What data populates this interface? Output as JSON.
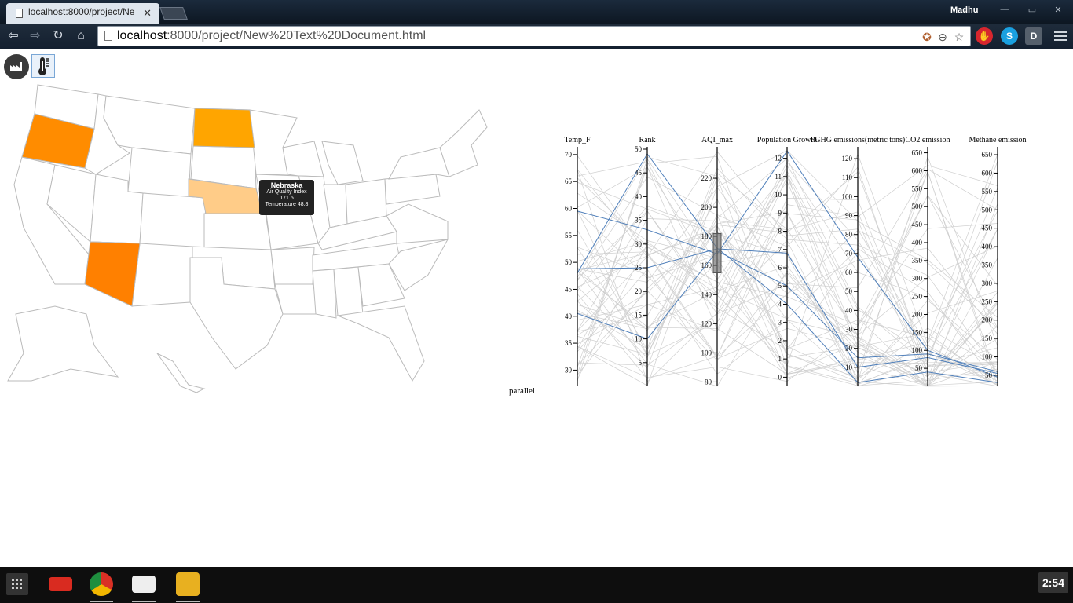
{
  "browser": {
    "tab_title": "localhost:8000/project/Ne",
    "url_host": "localhost",
    "url_rest": ":8000/project/New%20Text%20Document.html",
    "user": "Madhu",
    "clock": "2:54"
  },
  "map": {
    "highlighted_states": [
      {
        "name": "Oregon",
        "color": "#ff8c00"
      },
      {
        "name": "North Dakota",
        "color": "#ffa500"
      },
      {
        "name": "Nebraska",
        "color": "#ffcc88"
      },
      {
        "name": "Arizona",
        "color": "#ff8000"
      }
    ],
    "tooltip": {
      "state": "Nebraska",
      "aqi_label": "Air Quality Index",
      "aqi_value": "171.5",
      "temp_label": "Temperature",
      "temp_value": "48.8"
    }
  },
  "parallel": {
    "label": "parallel",
    "axes": [
      {
        "name": "Temp_F",
        "ticks": [
          "30",
          "35",
          "40",
          "45",
          "50",
          "55",
          "60",
          "65",
          "70"
        ],
        "min": 27,
        "max": 71
      },
      {
        "name": "Rank",
        "ticks": [
          "5",
          "10",
          "15",
          "20",
          "25",
          "30",
          "35",
          "40",
          "45",
          "50"
        ],
        "min": 0,
        "max": 50
      },
      {
        "name": "AQI_max",
        "ticks": [
          "80",
          "100",
          "120",
          "140",
          "160",
          "180",
          "200",
          "220"
        ],
        "min": 77,
        "max": 240
      },
      {
        "name": "Population Growth",
        "ticks": [
          "0",
          "1",
          "2",
          "3",
          "4",
          "5",
          "6",
          "7",
          "8",
          "9",
          "10",
          "11",
          "12"
        ],
        "min": -0.5,
        "max": 12.5
      },
      {
        "name": "FGHG emissions(metric tons)",
        "ticks": [
          "10",
          "20",
          "30",
          "40",
          "50",
          "60",
          "70",
          "80",
          "90",
          "100",
          "110",
          "120"
        ],
        "min": 0,
        "max": 125
      },
      {
        "name": "CO2 emission",
        "ticks": [
          "50",
          "100",
          "150",
          "200",
          "250",
          "300",
          "350",
          "400",
          "450",
          "500",
          "550",
          "600",
          "650"
        ],
        "min": 0,
        "max": 660
      },
      {
        "name": "Methane emission",
        "ticks": [
          "50",
          "100",
          "150",
          "200",
          "250",
          "300",
          "350",
          "400",
          "450",
          "500",
          "550",
          "600",
          "650"
        ],
        "min": 20,
        "max": 665
      }
    ],
    "brush": {
      "axis": "AQI_max",
      "min": 155,
      "max": 182
    },
    "highlighted_records": [
      [
        48.8,
        25,
        171.5,
        6.8,
        10,
        80,
        55
      ],
      [
        40.5,
        10,
        170,
        5.0,
        15,
        90,
        60
      ],
      [
        59.5,
        33,
        168,
        12.4,
        68,
        100,
        45
      ],
      [
        48.0,
        49,
        172,
        4.0,
        2,
        40,
        30
      ]
    ]
  },
  "colors": {
    "highlight_line": "#4f7fba",
    "background_line": "#cfcfcf",
    "tooltip_bg": "#222222"
  }
}
